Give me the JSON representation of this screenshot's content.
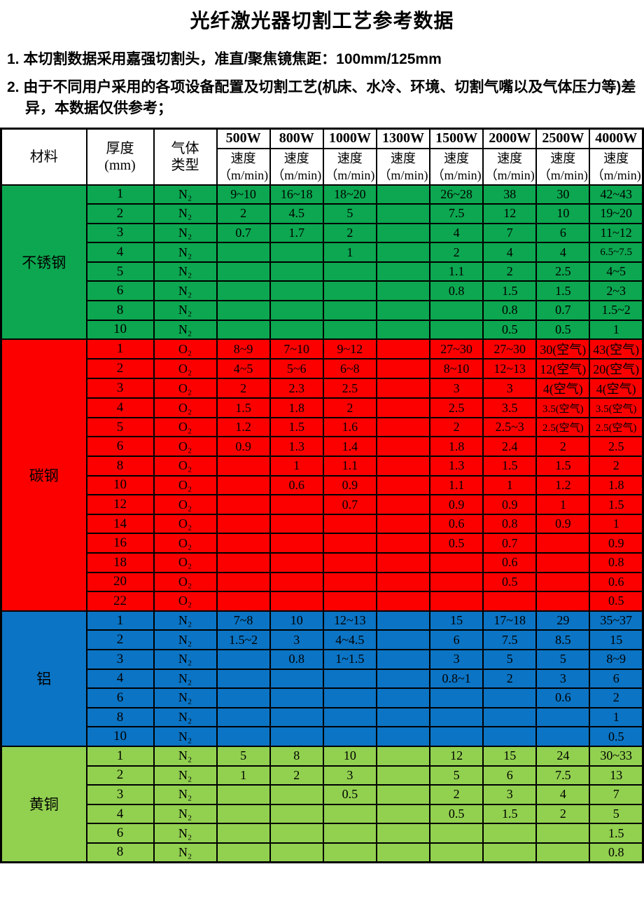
{
  "title": "光纤激光器切割工艺参考数据",
  "notes": [
    "1. 本切割数据采用嘉强切割头，准直/聚焦镜焦距：100mm/125mm",
    "2. 由于不同用户采用的各项设备配置及切割工艺(机床、水冷、环境、切割气嘴以及气体压力等)差异，本数据仅供参考；"
  ],
  "table": {
    "header": {
      "material_label": "材料",
      "thickness_label_line1": "厚度",
      "thickness_label_line2": "(mm)",
      "gas_label_line1": "气体",
      "gas_label_line2": "类型",
      "power_columns": [
        "500W",
        "800W",
        "1000W",
        "1300W",
        "1500W",
        "2000W",
        "2500W",
        "4000W"
      ],
      "speed_label": "速度",
      "speed_unit_label": "（m/min)"
    },
    "sections": [
      {
        "material": "不锈钢",
        "bg_color": "#0ca750",
        "rows": [
          {
            "thickness": "1",
            "gas": "N₂",
            "speeds": [
              "9~10",
              "16~18",
              "18~20",
              "",
              "26~28",
              "38",
              "30",
              "42~43"
            ]
          },
          {
            "thickness": "2",
            "gas": "N₂",
            "speeds": [
              "2",
              "4.5",
              "5",
              "",
              "7.5",
              "12",
              "10",
              "19~20"
            ]
          },
          {
            "thickness": "3",
            "gas": "N₂",
            "speeds": [
              "0.7",
              "1.7",
              "2",
              "",
              "4",
              "7",
              "6",
              "11~12"
            ]
          },
          {
            "thickness": "4",
            "gas": "N₂",
            "speeds": [
              "",
              "",
              "1",
              "",
              "2",
              "4",
              "4",
              "6.5~7.5"
            ]
          },
          {
            "thickness": "5",
            "gas": "N₂",
            "speeds": [
              "",
              "",
              "",
              "",
              "1.1",
              "2",
              "2.5",
              "4~5"
            ]
          },
          {
            "thickness": "6",
            "gas": "N₂",
            "speeds": [
              "",
              "",
              "",
              "",
              "0.8",
              "1.5",
              "1.5",
              "2~3"
            ]
          },
          {
            "thickness": "8",
            "gas": "N₂",
            "speeds": [
              "",
              "",
              "",
              "",
              "",
              "0.8",
              "0.7",
              "1.5~2"
            ]
          },
          {
            "thickness": "10",
            "gas": "N₂",
            "speeds": [
              "",
              "",
              "",
              "",
              "",
              "0.5",
              "0.5",
              "1"
            ]
          }
        ]
      },
      {
        "material": "碳钢",
        "bg_color": "#fc0000",
        "rows": [
          {
            "thickness": "1",
            "gas": "O₂",
            "speeds": [
              "8~9",
              "7~10",
              "9~12",
              "",
              "27~30",
              "27~30",
              "30(空气)",
              "43(空气)"
            ]
          },
          {
            "thickness": "2",
            "gas": "O₂",
            "speeds": [
              "4~5",
              "5~6",
              "6~8",
              "",
              "8~10",
              "12~13",
              "12(空气)",
              "20(空气)"
            ]
          },
          {
            "thickness": "3",
            "gas": "O₂",
            "speeds": [
              "2",
              "2.3",
              "2.5",
              "",
              "3",
              "3",
              "4(空气)",
              "4(空气)"
            ]
          },
          {
            "thickness": "4",
            "gas": "O₂",
            "speeds": [
              "1.5",
              "1.8",
              "2",
              "",
              "2.5",
              "3.5",
              "3.5(空气)",
              "3.5(空气)"
            ]
          },
          {
            "thickness": "5",
            "gas": "O₂",
            "speeds": [
              "1.2",
              "1.5",
              "1.6",
              "",
              "2",
              "2.5~3",
              "2.5(空气)",
              "2.5(空气)"
            ]
          },
          {
            "thickness": "6",
            "gas": "O₂",
            "speeds": [
              "0.9",
              "1.3",
              "1.4",
              "",
              "1.8",
              "2.4",
              "2",
              "2.5"
            ]
          },
          {
            "thickness": "8",
            "gas": "O₂",
            "speeds": [
              "",
              "1",
              "1.1",
              "",
              "1.3",
              "1.5",
              "1.5",
              "2"
            ]
          },
          {
            "thickness": "10",
            "gas": "O₂",
            "speeds": [
              "",
              "0.6",
              "0.9",
              "",
              "1.1",
              "1",
              "1.2",
              "1.8"
            ]
          },
          {
            "thickness": "12",
            "gas": "O₂",
            "speeds": [
              "",
              "",
              "0.7",
              "",
              "0.9",
              "0.9",
              "1",
              "1.5"
            ]
          },
          {
            "thickness": "14",
            "gas": "O₂",
            "speeds": [
              "",
              "",
              "",
              "",
              "0.6",
              "0.8",
              "0.9",
              "1"
            ]
          },
          {
            "thickness": "16",
            "gas": "O₂",
            "speeds": [
              "",
              "",
              "",
              "",
              "0.5",
              "0.7",
              "",
              "0.9"
            ]
          },
          {
            "thickness": "18",
            "gas": "O₂",
            "speeds": [
              "",
              "",
              "",
              "",
              "",
              "0.6",
              "",
              "0.8"
            ]
          },
          {
            "thickness": "20",
            "gas": "O₂",
            "speeds": [
              "",
              "",
              "",
              "",
              "",
              "0.5",
              "",
              "0.6"
            ]
          },
          {
            "thickness": "22",
            "gas": "O₂",
            "speeds": [
              "",
              "",
              "",
              "",
              "",
              "",
              "",
              "0.5"
            ]
          }
        ]
      },
      {
        "material": "铝",
        "bg_color": "#0b74c4",
        "rows": [
          {
            "thickness": "1",
            "gas": "N₂",
            "speeds": [
              "7~8",
              "10",
              "12~13",
              "",
              "15",
              "17~18",
              "29",
              "35~37"
            ]
          },
          {
            "thickness": "2",
            "gas": "N₂",
            "speeds": [
              "1.5~2",
              "3",
              "4~4.5",
              "",
              "6",
              "7.5",
              "8.5",
              "15"
            ]
          },
          {
            "thickness": "3",
            "gas": "N₂",
            "speeds": [
              "",
              "0.8",
              "1~1.5",
              "",
              "3",
              "5",
              "5",
              "8~9"
            ]
          },
          {
            "thickness": "4",
            "gas": "N₂",
            "speeds": [
              "",
              "",
              "",
              "",
              "0.8~1",
              "2",
              "3",
              "6"
            ]
          },
          {
            "thickness": "6",
            "gas": "N₂",
            "speeds": [
              "",
              "",
              "",
              "",
              "",
              "",
              "0.6",
              "2"
            ]
          },
          {
            "thickness": "8",
            "gas": "N₂",
            "speeds": [
              "",
              "",
              "",
              "",
              "",
              "",
              "",
              "1"
            ]
          },
          {
            "thickness": "10",
            "gas": "N₂",
            "speeds": [
              "",
              "",
              "",
              "",
              "",
              "",
              "",
              "0.5"
            ]
          }
        ]
      },
      {
        "material": "黄铜",
        "bg_color": "#92d050",
        "rows": [
          {
            "thickness": "1",
            "gas": "N₂",
            "speeds": [
              "5",
              "8",
              "10",
              "",
              "12",
              "15",
              "24",
              "30~33"
            ]
          },
          {
            "thickness": "2",
            "gas": "N₂",
            "speeds": [
              "1",
              "2",
              "3",
              "",
              "5",
              "6",
              "7.5",
              "13"
            ]
          },
          {
            "thickness": "3",
            "gas": "N₂",
            "speeds": [
              "",
              "",
              "0.5",
              "",
              "2",
              "3",
              "4",
              "7"
            ]
          },
          {
            "thickness": "4",
            "gas": "N₂",
            "speeds": [
              "",
              "",
              "",
              "",
              "0.5",
              "1.5",
              "2",
              "5"
            ]
          },
          {
            "thickness": "6",
            "gas": "N₂",
            "speeds": [
              "",
              "",
              "",
              "",
              "",
              "",
              "",
              "1.5"
            ]
          },
          {
            "thickness": "8",
            "gas": "N₂",
            "speeds": [
              "",
              "",
              "",
              "",
              "",
              "",
              "",
              "0.8"
            ]
          }
        ]
      }
    ]
  }
}
